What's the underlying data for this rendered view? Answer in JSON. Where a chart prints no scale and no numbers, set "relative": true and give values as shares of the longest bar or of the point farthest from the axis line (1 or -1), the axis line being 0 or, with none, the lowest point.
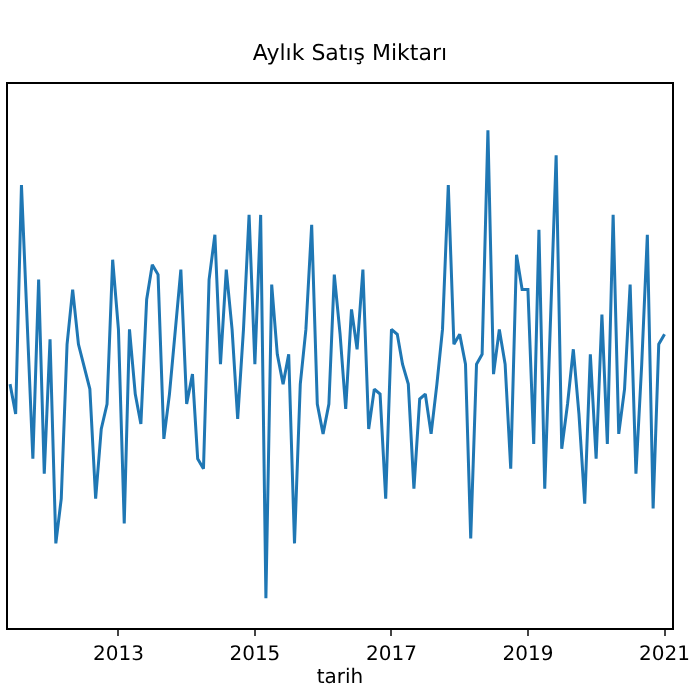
{
  "chart_data": {
    "type": "line",
    "title": "Aylık Satış Miktarı",
    "xlabel": "tarih",
    "relative": true,
    "grid": false,
    "marker": "none",
    "line_style": "solid",
    "x": [
      "2011-06",
      "2011-07",
      "2011-08",
      "2011-10",
      "2011-11",
      "2011-12",
      "2012-01",
      "2012-02",
      "2012-03",
      "2012-04",
      "2012-05",
      "2012-06",
      "2012-08",
      "2012-09",
      "2012-10",
      "2012-11",
      "2012-12",
      "2013-01",
      "2013-02",
      "2013-03",
      "2013-04",
      "2013-05",
      "2013-06",
      "2013-07",
      "2013-08",
      "2013-09",
      "2013-10",
      "2013-12",
      "2014-01",
      "2014-02",
      "2014-03",
      "2014-04",
      "2014-05",
      "2014-06",
      "2014-07",
      "2014-08",
      "2014-09",
      "2014-10",
      "2014-11",
      "2014-12",
      "2015-01",
      "2015-02",
      "2015-03",
      "2015-04",
      "2015-05",
      "2015-06",
      "2015-07",
      "2015-08",
      "2015-09",
      "2015-10",
      "2015-11",
      "2015-12",
      "2016-01",
      "2016-02",
      "2016-03",
      "2016-04",
      "2016-05",
      "2016-06",
      "2016-07",
      "2016-08",
      "2016-09",
      "2016-10",
      "2016-11",
      "2016-12",
      "2017-01",
      "2017-02",
      "2017-03",
      "2017-04",
      "2017-05",
      "2017-06",
      "2017-07",
      "2017-08",
      "2017-09",
      "2017-10",
      "2017-11",
      "2017-12",
      "2018-01",
      "2018-02",
      "2018-03",
      "2018-04",
      "2018-05",
      "2018-06",
      "2018-07",
      "2018-08",
      "2018-09",
      "2018-10",
      "2018-11",
      "2018-12",
      "2019-01",
      "2019-02",
      "2019-03",
      "2019-04",
      "2019-06",
      "2019-07",
      "2019-08",
      "2019-09",
      "2019-10",
      "2019-11",
      "2019-12",
      "2020-01",
      "2020-02",
      "2020-03",
      "2020-04",
      "2020-05",
      "2020-06",
      "2020-07",
      "2020-08",
      "2020-09",
      "2020-10",
      "2020-11",
      "2020-12",
      "2021-01"
    ],
    "series": [
      {
        "color": "#1f77b4",
        "values": [
          0.49,
          0.43,
          0.89,
          0.34,
          0.7,
          0.31,
          0.58,
          0.17,
          0.26,
          0.57,
          0.68,
          0.57,
          0.48,
          0.26,
          0.4,
          0.45,
          0.74,
          0.6,
          0.21,
          0.6,
          0.47,
          0.41,
          0.66,
          0.73,
          0.71,
          0.38,
          0.47,
          0.72,
          0.45,
          0.51,
          0.34,
          0.32,
          0.7,
          0.79,
          0.53,
          0.72,
          0.6,
          0.42,
          0.6,
          0.83,
          0.53,
          0.83,
          0.06,
          0.69,
          0.55,
          0.49,
          0.55,
          0.17,
          0.49,
          0.6,
          0.81,
          0.45,
          0.39,
          0.45,
          0.71,
          0.59,
          0.44,
          0.64,
          0.56,
          0.72,
          0.4,
          0.48,
          0.47,
          0.26,
          0.6,
          0.59,
          0.53,
          0.49,
          0.28,
          0.46,
          0.47,
          0.39,
          0.49,
          0.6,
          0.89,
          0.57,
          0.59,
          0.53,
          0.18,
          0.53,
          0.55,
          1,
          0.51,
          0.6,
          0.53,
          0.32,
          0.75,
          0.68,
          0.68,
          0.37,
          0.8,
          0.28,
          0.95,
          0.36,
          0.45,
          0.56,
          0.43,
          0.25,
          0.55,
          0.34,
          0.63,
          0.37,
          0.83,
          0.39,
          0.48,
          0.69,
          0.31,
          0.53,
          0.79,
          0.24,
          0.57,
          0.59
        ]
      }
    ],
    "xlim": [
      "2011-05-21",
      "2021-02-10"
    ],
    "xticks": [
      {
        "value": "2013-01-01",
        "label": "2013"
      },
      {
        "value": "2015-01-01",
        "label": "2015"
      },
      {
        "value": "2017-01-01",
        "label": "2017"
      },
      {
        "value": "2019-01-01",
        "label": "2019"
      },
      {
        "value": "2021-01-01",
        "label": "2021"
      }
    ]
  }
}
